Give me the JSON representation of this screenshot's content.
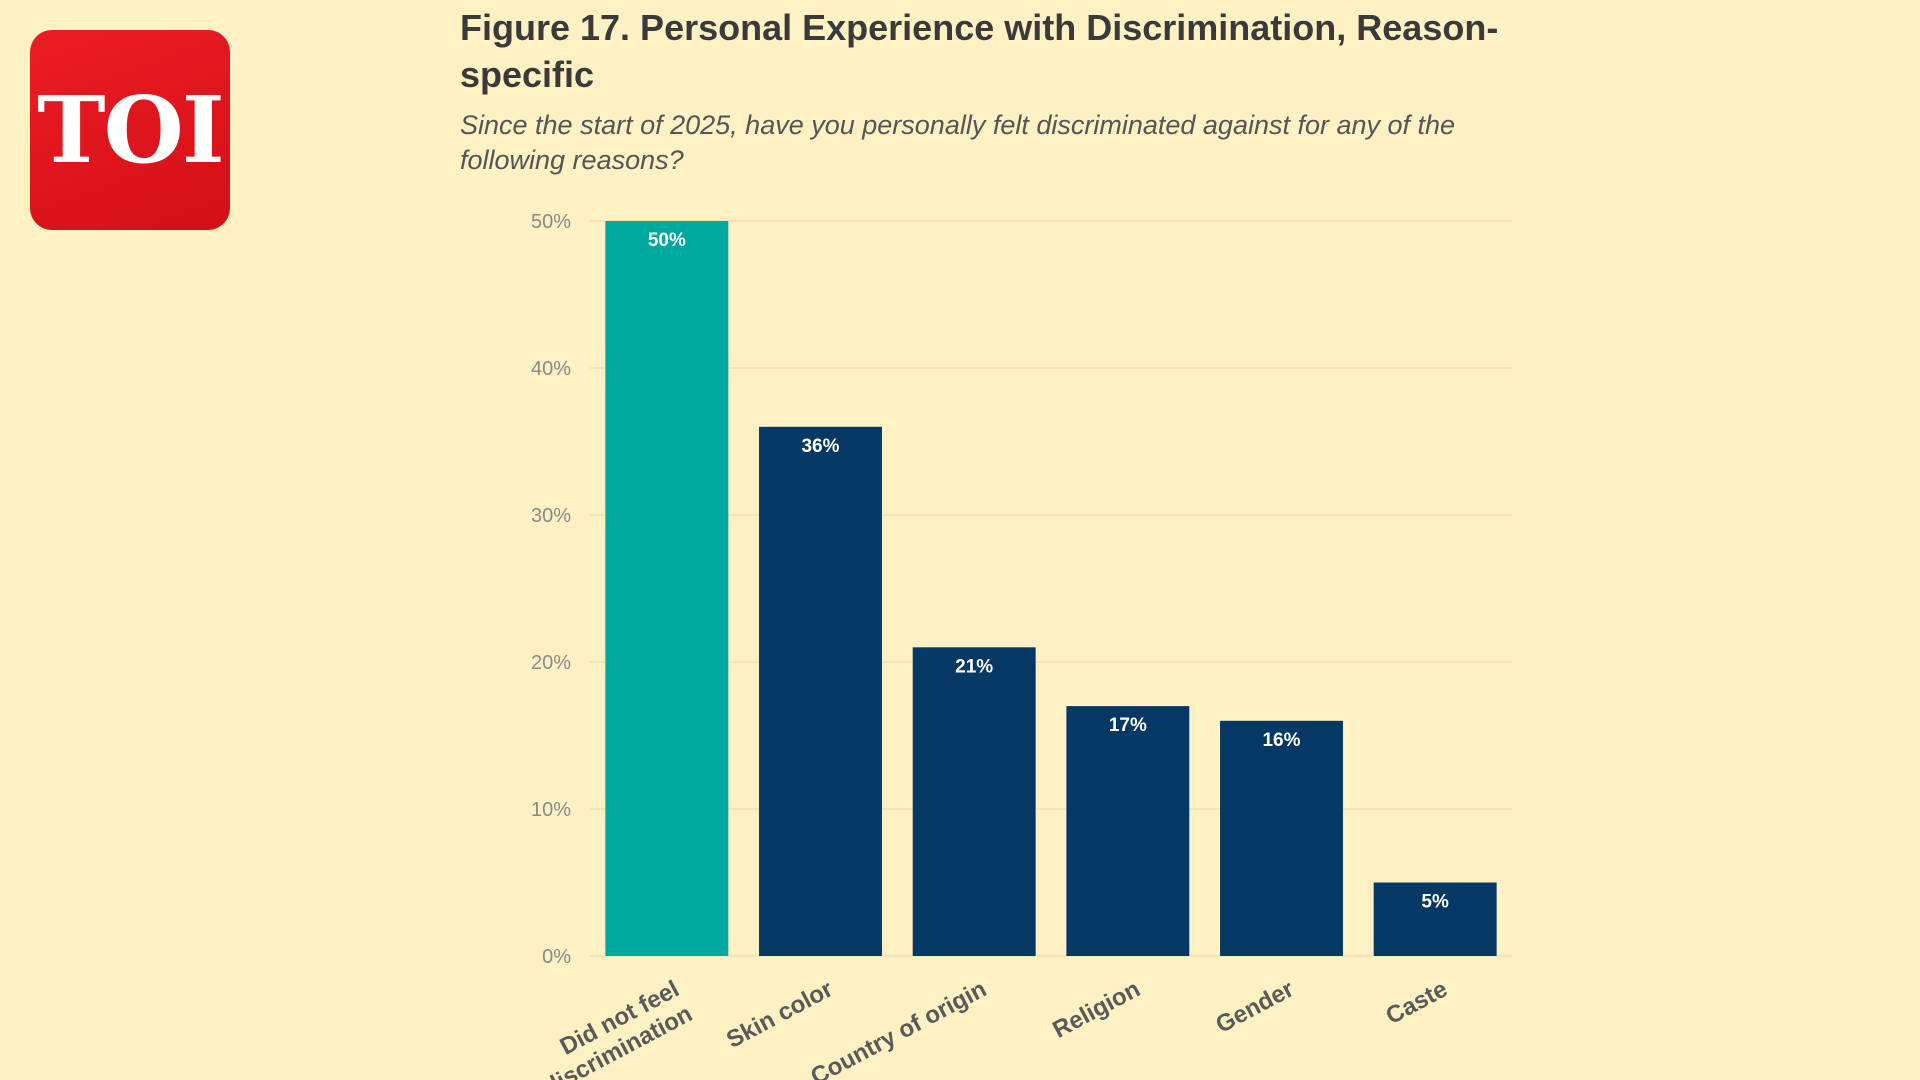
{
  "logo": {
    "text": "TOI",
    "color": "#e31e24"
  },
  "chart_data": {
    "type": "bar",
    "title": "Figure 17. Personal Experience with Discrimination, Reason-specific",
    "subtitle": "Since the start of 2025, have you personally felt discriminated against for any of the following reasons?",
    "categories": [
      "Did not feel discrimination",
      "Skin color",
      "Country of origin",
      "Religion",
      "Gender",
      "Caste"
    ],
    "category_lines": [
      [
        "Did not feel",
        "discrimination"
      ],
      [
        "Skin color"
      ],
      [
        "Country of origin"
      ],
      [
        "Religion"
      ],
      [
        "Gender"
      ],
      [
        "Caste"
      ]
    ],
    "values": [
      50,
      36,
      21,
      17,
      16,
      5
    ],
    "data_labels": [
      "50%",
      "36%",
      "21%",
      "17%",
      "16%",
      "5%"
    ],
    "bar_colors": [
      "#00a99d",
      "#053864",
      "#053864",
      "#053864",
      "#053864",
      "#053864"
    ],
    "ylim": [
      0,
      50
    ],
    "yticks": [
      0,
      10,
      20,
      30,
      40,
      50
    ],
    "ytick_labels": [
      "0%",
      "10%",
      "20%",
      "30%",
      "40%",
      "50%"
    ],
    "xlabel": "",
    "ylabel": "",
    "grid": true
  }
}
